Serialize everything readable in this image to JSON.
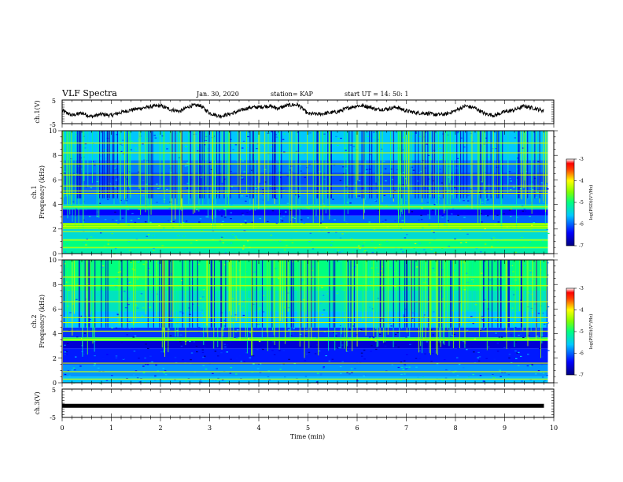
{
  "header": {
    "title": "VLF Spectra",
    "date": "Jan. 30, 2020",
    "station": "station= KAP",
    "start": "start  UT  =   14: 50: 1"
  },
  "chart_data": [
    {
      "id": "ch1-waveform",
      "type": "line",
      "ylabel": "ch.1(V)",
      "ylim": [
        -5,
        5
      ],
      "yticks": [
        "5",
        "-5"
      ],
      "xlim": [
        0,
        10
      ],
      "color": "#000000",
      "x": [
        0.0,
        0.2,
        0.4,
        0.6,
        0.8,
        1.0,
        1.2,
        1.4,
        1.6,
        1.8,
        2.0,
        2.2,
        2.4,
        2.6,
        2.8,
        3.0,
        3.2,
        3.4,
        3.6,
        3.8,
        4.0,
        4.2,
        4.4,
        4.6,
        4.8,
        5.0,
        5.2,
        5.4,
        5.6,
        5.8,
        6.0,
        6.2,
        6.4,
        6.6,
        6.8,
        7.0,
        7.2,
        7.4,
        7.6,
        7.8,
        8.0,
        8.2,
        8.4,
        8.6,
        8.8,
        9.0,
        9.2,
        9.4,
        9.6,
        9.8
      ],
      "y": [
        0.5,
        -1.5,
        -0.5,
        -2.0,
        -1.0,
        -1.5,
        -0.2,
        0.8,
        1.5,
        2.2,
        2.6,
        1.0,
        0.2,
        2.5,
        2.8,
        -0.5,
        -1.8,
        -1.0,
        0.3,
        1.8,
        2.0,
        2.5,
        1.5,
        2.8,
        3.0,
        -0.8,
        -1.0,
        -0.5,
        0.0,
        1.5,
        2.6,
        2.4,
        1.0,
        1.2,
        2.0,
        0.4,
        -0.4,
        -0.6,
        -1.2,
        -1.0,
        0.5,
        2.5,
        1.6,
        -0.8,
        -1.5,
        0.0,
        0.8,
        2.5,
        1.5,
        0.4
      ]
    },
    {
      "id": "ch1-spectrogram",
      "type": "heatmap",
      "ylabel_line1": "ch.1",
      "ylabel_line2": "Frequency (kHz)",
      "ylim": [
        0,
        10
      ],
      "yticks": [
        "0",
        "2",
        "4",
        "6",
        "8",
        "10"
      ],
      "xlim": [
        0,
        10
      ],
      "colorbar": {
        "label": "log(PSD)(V²/Hz)",
        "range": [
          -7,
          -3
        ],
        "ticks": [
          "-3",
          "-4",
          "-5",
          "-6",
          "-7"
        ]
      },
      "bands_khz": [
        {
          "from": 0.0,
          "to": 0.4,
          "level": -5.2
        },
        {
          "from": 0.4,
          "to": 1.2,
          "level": -5.0
        },
        {
          "from": 1.2,
          "to": 2.0,
          "level": -5.4
        },
        {
          "from": 2.0,
          "to": 2.5,
          "level": -4.6
        },
        {
          "from": 2.5,
          "to": 3.1,
          "level": -6.0
        },
        {
          "from": 3.1,
          "to": 3.6,
          "level": -6.4
        },
        {
          "from": 3.6,
          "to": 4.0,
          "level": -5.2
        },
        {
          "from": 4.0,
          "to": 4.8,
          "level": -5.8
        },
        {
          "from": 4.8,
          "to": 5.6,
          "level": -6.0
        },
        {
          "from": 5.6,
          "to": 6.6,
          "level": -6.1
        },
        {
          "from": 6.6,
          "to": 7.6,
          "level": -5.9
        },
        {
          "from": 7.6,
          "to": 10.0,
          "level": -5.6
        }
      ],
      "lines_khz": [
        0.5,
        1.1,
        1.8,
        2.2,
        2.4,
        3.8,
        4.9,
        5.1,
        5.5,
        6.4,
        7.3,
        8.2,
        9.0
      ]
    },
    {
      "id": "ch2-spectrogram",
      "type": "heatmap",
      "ylabel_line1": "ch.2",
      "ylabel_line2": "Frequency (kHz)",
      "ylim": [
        0,
        10
      ],
      "yticks": [
        "0",
        "2",
        "4",
        "6",
        "8",
        "10"
      ],
      "xlim": [
        0,
        10
      ],
      "colorbar": {
        "label": "log(PSD)(V²/Hz)",
        "range": [
          -7,
          -3
        ],
        "ticks": [
          "-3",
          "-4",
          "-5",
          "-6",
          "-7"
        ]
      },
      "bands_khz": [
        {
          "from": 0.0,
          "to": 0.5,
          "level": -5.6
        },
        {
          "from": 0.5,
          "to": 1.5,
          "level": -5.8
        },
        {
          "from": 1.5,
          "to": 2.8,
          "level": -6.3
        },
        {
          "from": 2.8,
          "to": 3.4,
          "level": -6.6
        },
        {
          "from": 3.4,
          "to": 3.7,
          "level": -4.8
        },
        {
          "from": 3.7,
          "to": 4.5,
          "level": -6.2
        },
        {
          "from": 4.5,
          "to": 5.8,
          "level": -5.6
        },
        {
          "from": 5.8,
          "to": 7.5,
          "level": -5.3
        },
        {
          "from": 7.5,
          "to": 10.0,
          "level": -5.0
        }
      ],
      "lines_khz": [
        0.3,
        0.9,
        1.6,
        3.5,
        4.2,
        4.9,
        5.3,
        6.6,
        7.9,
        8.6
      ]
    },
    {
      "id": "ch3-waveform",
      "type": "line",
      "ylabel": "ch.3(V)",
      "ylim": [
        -5,
        5
      ],
      "yticks": [
        "5",
        "-5"
      ],
      "xlim": [
        0,
        10
      ],
      "color": "#000000",
      "x": [
        0,
        9.8
      ],
      "y": [
        -0.9,
        -0.9
      ]
    }
  ],
  "x_axis": {
    "title": "Time (min)",
    "ticks": [
      "0",
      "1",
      "2",
      "3",
      "4",
      "5",
      "6",
      "7",
      "8",
      "9",
      "10"
    ]
  }
}
